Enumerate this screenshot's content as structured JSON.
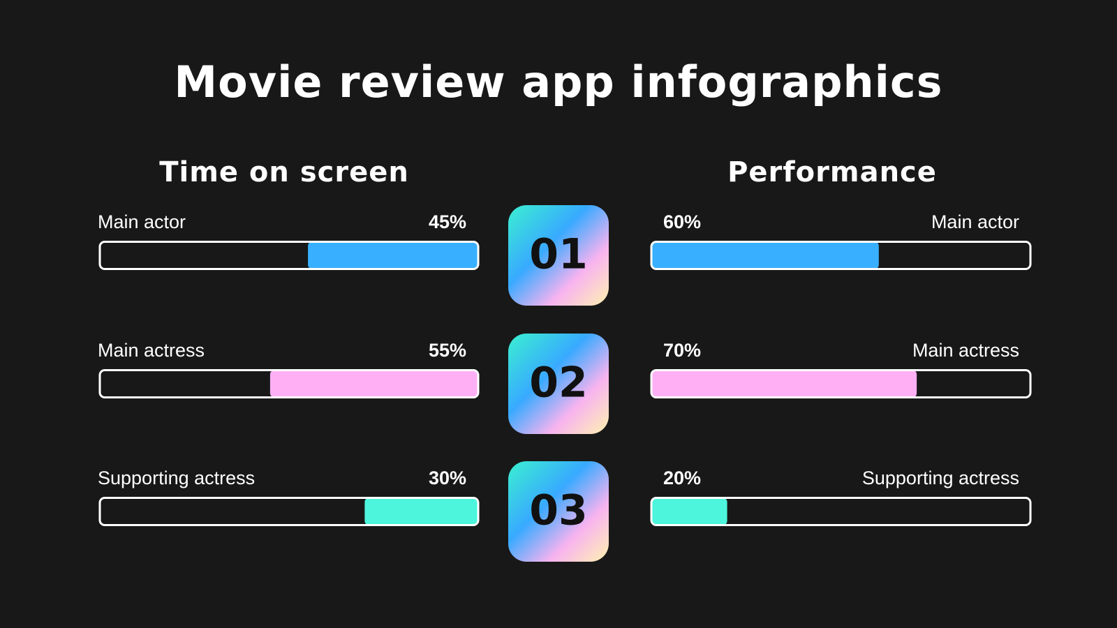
{
  "title": "Movie review app infographics",
  "badges": [
    "01",
    "02",
    "03"
  ],
  "chart_data": [
    {
      "type": "bar",
      "title": "Time on screen",
      "categories": [
        "Main actor",
        "Main actress",
        "Supporting actress"
      ],
      "values": [
        45,
        55,
        30
      ],
      "value_labels": [
        "45%",
        "55%",
        "30%"
      ],
      "colors": [
        "#38b0ff",
        "#ffb0f5",
        "#4cf5dc"
      ],
      "xlim": [
        0,
        100
      ],
      "x_reversed": true
    },
    {
      "type": "bar",
      "title": "Performance",
      "categories": [
        "Main actor",
        "Main actress",
        "Supporting actress"
      ],
      "values": [
        60,
        70,
        20
      ],
      "value_labels": [
        "60%",
        "70%",
        "20%"
      ],
      "colors": [
        "#38b0ff",
        "#ffb0f5",
        "#4cf5dc"
      ],
      "xlim": [
        0,
        100
      ],
      "x_reversed": false
    }
  ]
}
